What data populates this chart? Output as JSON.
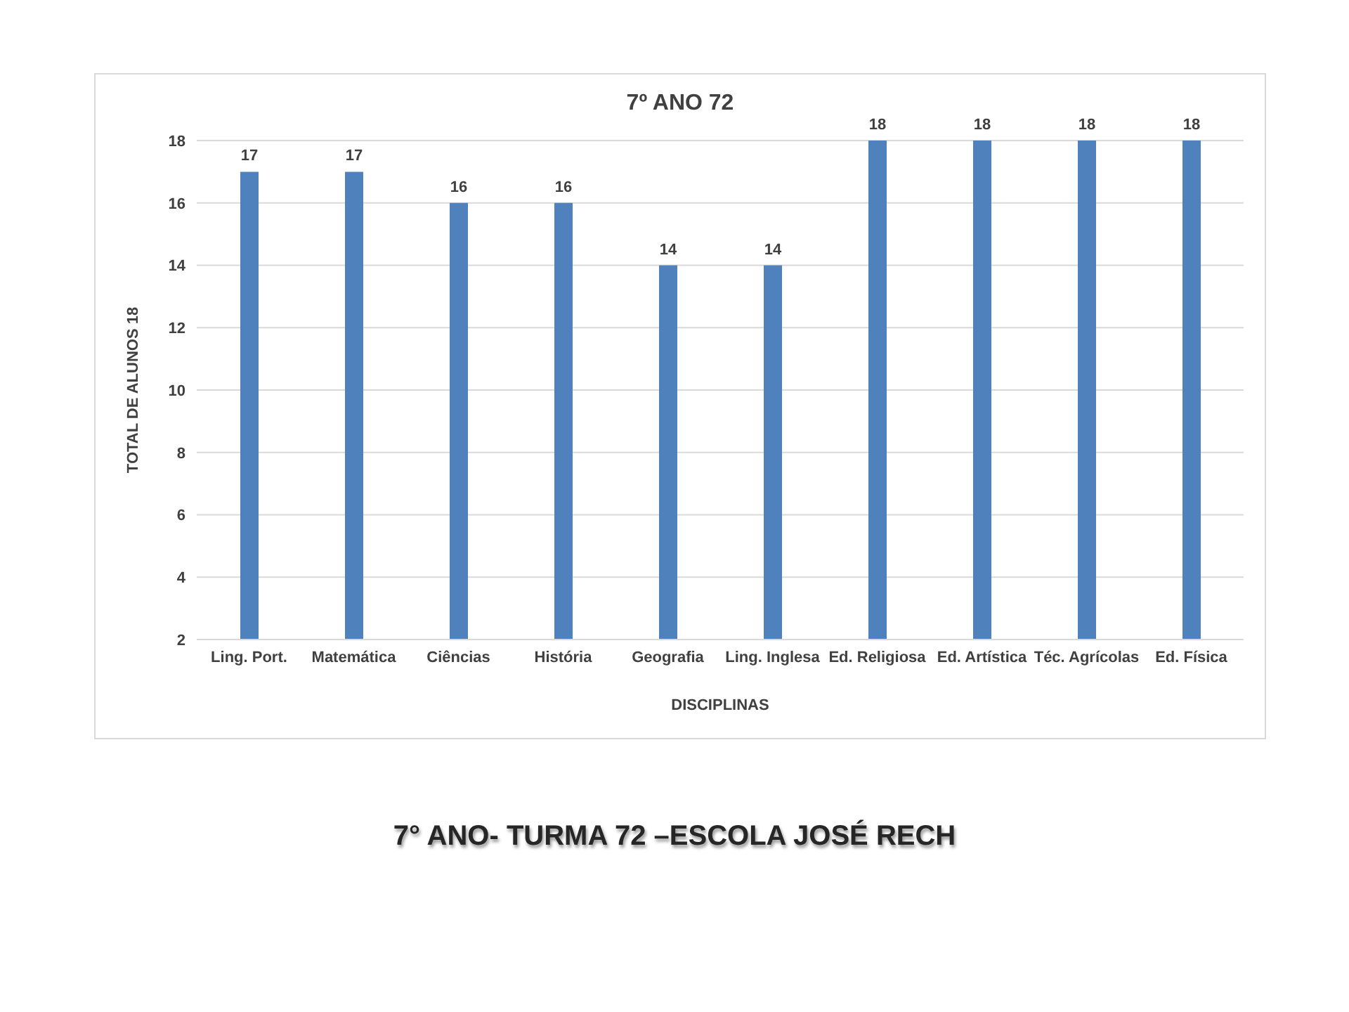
{
  "chart_data": {
    "type": "bar",
    "title": "7º ANO 72",
    "xlabel": "DISCIPLINAS",
    "ylabel": "TOTAL DE ALUNOS 18",
    "categories": [
      "Ling. Port.",
      "Matemática",
      "Ciências",
      "História",
      "Geografia",
      "Ling. Inglesa",
      "Ed. Religiosa",
      "Ed. Artística",
      "Téc. Agrícolas",
      "Ed. Física"
    ],
    "values": [
      17,
      17,
      16,
      16,
      14,
      14,
      18,
      18,
      18,
      18
    ],
    "color": "#4f81bd",
    "ylim": [
      2,
      18
    ],
    "yticks": [
      2,
      4,
      6,
      8,
      10,
      12,
      14,
      16,
      18
    ],
    "grid": "y",
    "data_labels": true,
    "annotations": [
      "7° ANO- TURMA 72 –ESCOLA JOSÉ RECH"
    ]
  }
}
